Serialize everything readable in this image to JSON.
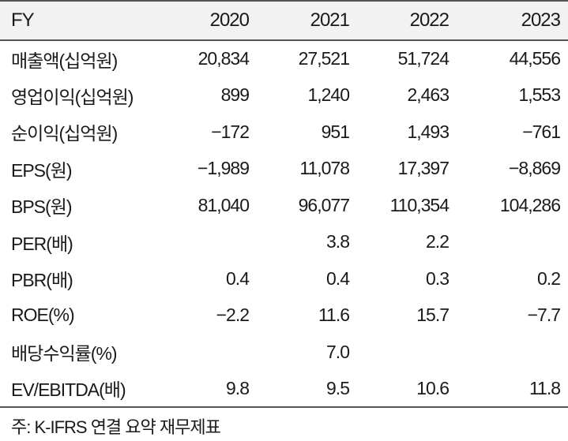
{
  "table": {
    "header": [
      "FY",
      "2020",
      "2021",
      "2022",
      "2023"
    ],
    "rows": [
      [
        "매출액(십억원)",
        "20,834",
        "27,521",
        "51,724",
        "44,556"
      ],
      [
        "영업이익(십억원)",
        "899",
        "1,240",
        "2,463",
        "1,553"
      ],
      [
        "순이익(십억원)",
        "−172",
        "951",
        "1,493",
        "−761"
      ],
      [
        "EPS(원)",
        "−1,989",
        "11,078",
        "17,397",
        "−8,869"
      ],
      [
        "BPS(원)",
        "81,040",
        "96,077",
        "110,354",
        "104,286"
      ],
      [
        "PER(배)",
        "",
        "3.8",
        "2.2",
        ""
      ],
      [
        "PBR(배)",
        "0.4",
        "0.4",
        "0.3",
        "0.2"
      ],
      [
        "ROE(%)",
        "−2.2",
        "11.6",
        "15.7",
        "−7.7"
      ],
      [
        "배당수익률(%)",
        "",
        "7.0",
        "",
        ""
      ],
      [
        "EV/EBITDA(배)",
        "9.8",
        "9.5",
        "10.6",
        "11.8"
      ]
    ]
  },
  "footnote": "주: K-IFRS 연결 요약 재무제표"
}
